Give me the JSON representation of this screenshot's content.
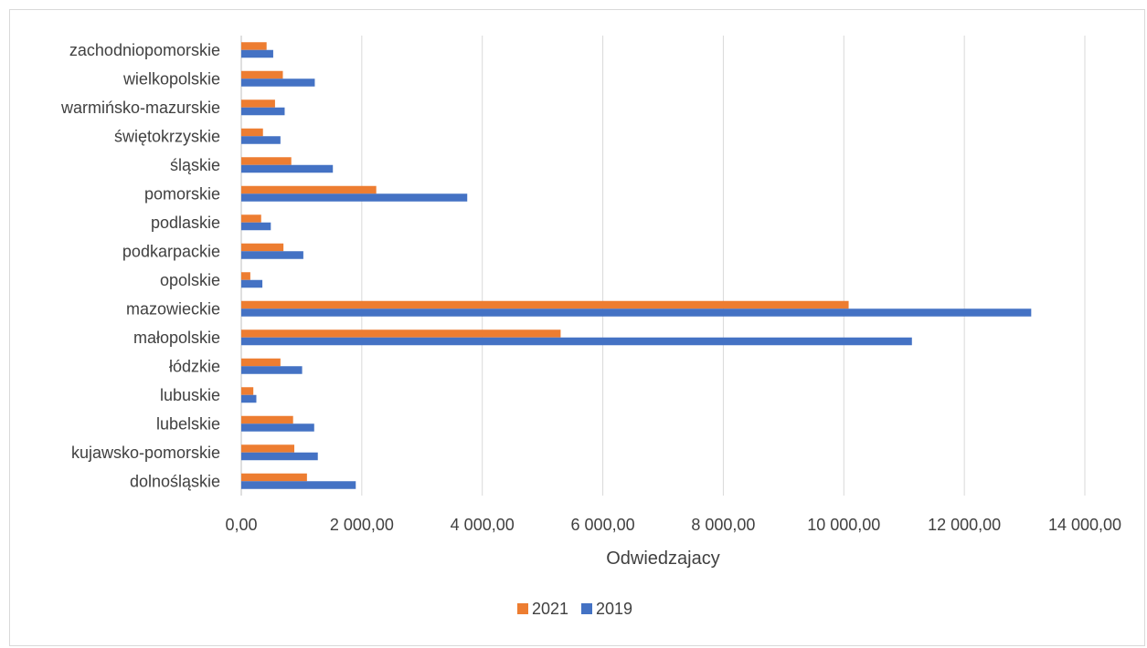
{
  "chart_data": {
    "type": "bar",
    "orientation": "horizontal",
    "title": "",
    "xlabel": "Odwiedzajacy",
    "ylabel": "",
    "xlim": [
      0,
      14000
    ],
    "x_ticks": [
      0,
      2000,
      4000,
      6000,
      8000,
      10000,
      12000,
      14000
    ],
    "x_tick_labels": [
      "0,00",
      "2 000,00",
      "4 000,00",
      "6 000,00",
      "8 000,00",
      "10 000,00",
      "12 000,00",
      "14 000,00"
    ],
    "grid": "vertical",
    "legend_position": "bottom",
    "categories": [
      "dolnośląskie",
      "kujawsko-pomorskie",
      "lubelskie",
      "lubuskie",
      "łódzkie",
      "małopolskie",
      "mazowieckie",
      "opolskie",
      "podkarpackie",
      "podlaskie",
      "pomorskie",
      "śląskie",
      "świętokrzyskie",
      "warmińsko-mazurskie",
      "wielkopolskie",
      "zachodniopomorskie"
    ],
    "series": [
      {
        "name": "2021",
        "color": "#ed7d31",
        "values": [
          1090,
          880,
          860,
          200,
          650,
          5300,
          10080,
          150,
          700,
          330,
          2240,
          830,
          360,
          560,
          690,
          420
        ]
      },
      {
        "name": "2019",
        "color": "#4472c4",
        "values": [
          1900,
          1270,
          1210,
          250,
          1010,
          11130,
          13110,
          350,
          1030,
          490,
          3750,
          1520,
          650,
          720,
          1220,
          530
        ]
      }
    ]
  }
}
